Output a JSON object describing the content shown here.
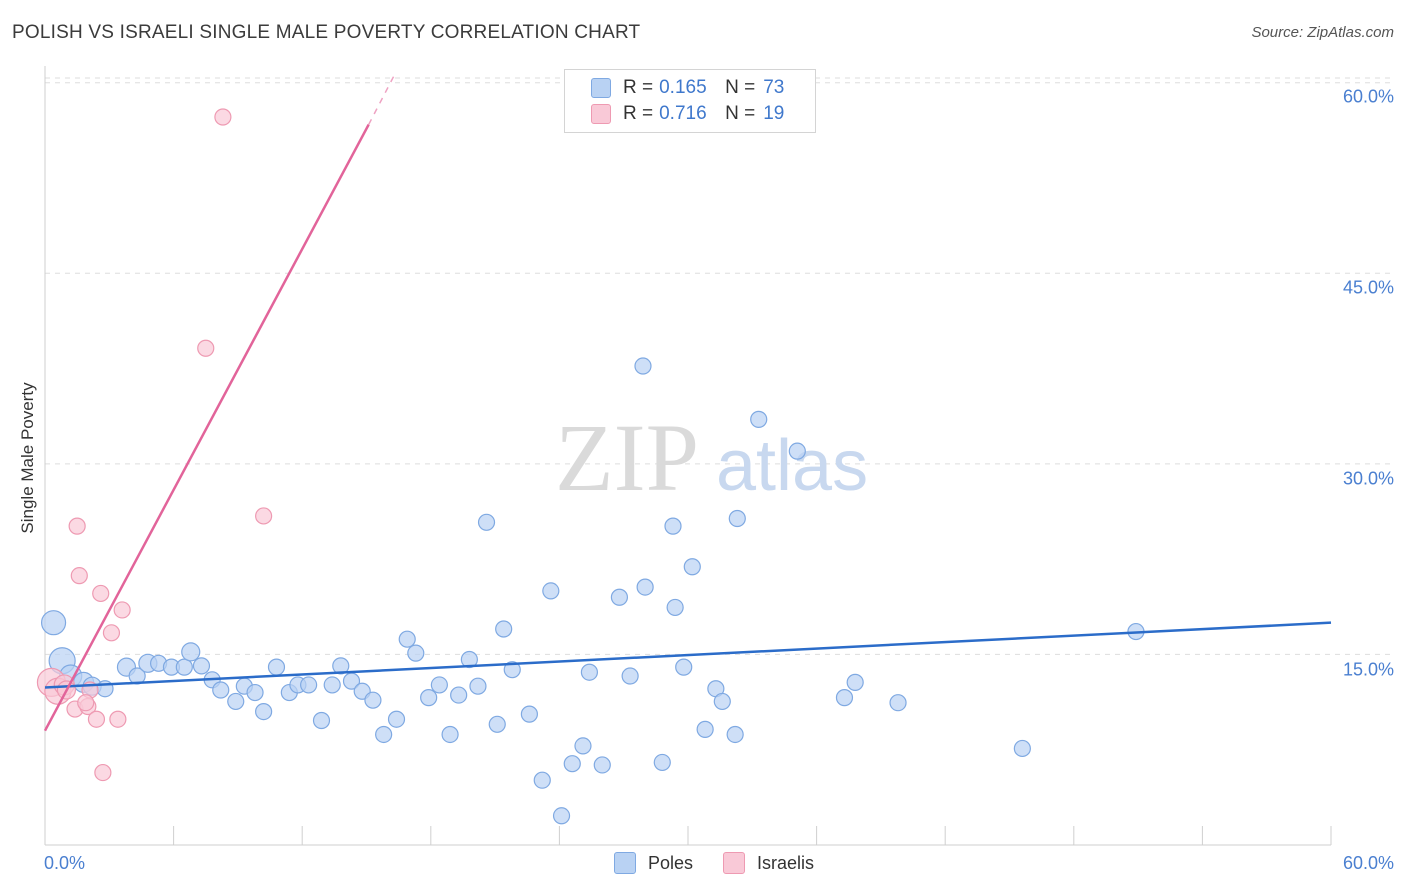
{
  "header": {
    "title": "POLISH VS ISRAELI SINGLE MALE POVERTY CORRELATION CHART",
    "source": "Source: ZipAtlas.com"
  },
  "legend": {
    "r_label": "R =",
    "n_label": "N =",
    "rows": [
      {
        "name": "Poles",
        "r": "0.165",
        "n": "73"
      },
      {
        "name": "Israelis",
        "r": "0.716",
        "n": "19"
      }
    ]
  },
  "colors": {
    "blue_fill": "#b9d2f3",
    "blue_stroke": "#7fa9e2",
    "blue_line": "#2b6cc9",
    "pink_fill": "#f9c9d7",
    "pink_stroke": "#ee9ab2",
    "pink_line": "#e2649a",
    "tick_text": "#4a7fd0"
  },
  "chart_data": {
    "type": "scatter",
    "title": "POLISH VS ISRAELI SINGLE MALE POVERTY CORRELATION CHART",
    "xlabel": "",
    "ylabel": "Single Male Poverty",
    "xlim": [
      0,
      60
    ],
    "ylim": [
      0,
      61
    ],
    "x_tick_labels": [
      "0.0%",
      "60.0%"
    ],
    "y_ticks": [
      15,
      30,
      45,
      60
    ],
    "y_tick_labels": [
      "15.0%",
      "30.0%",
      "45.0%",
      "60.0%"
    ],
    "grid": true,
    "legend_position": "top-center",
    "watermark": "ZIPatlas",
    "series": [
      {
        "name": "Poles",
        "r": 0.165,
        "n": 73,
        "trend": {
          "x0": 0,
          "y0": 12.4,
          "x1": 60,
          "y1": 17.5
        },
        "points": [
          [
            0.4,
            17.5,
            12
          ],
          [
            0.8,
            14.5,
            13
          ],
          [
            1.2,
            13.3,
            11
          ],
          [
            1.8,
            12.8,
            10
          ],
          [
            2.2,
            12.5,
            9
          ],
          [
            2.8,
            12.3,
            8
          ],
          [
            3.8,
            14.0,
            9
          ],
          [
            4.3,
            13.3,
            8
          ],
          [
            4.8,
            14.3,
            9
          ],
          [
            5.3,
            14.3,
            8
          ],
          [
            5.9,
            14.0,
            8
          ],
          [
            6.5,
            14.0,
            8
          ],
          [
            6.8,
            15.2,
            9
          ],
          [
            7.3,
            14.1,
            8
          ],
          [
            7.8,
            13.0,
            8
          ],
          [
            8.2,
            12.2,
            8
          ],
          [
            8.9,
            11.3,
            8
          ],
          [
            9.3,
            12.5,
            8
          ],
          [
            9.8,
            12.0,
            8
          ],
          [
            10.2,
            10.5,
            8
          ],
          [
            10.8,
            14.0,
            8
          ],
          [
            11.4,
            12.0,
            8
          ],
          [
            11.8,
            12.6,
            8
          ],
          [
            12.3,
            12.6,
            8
          ],
          [
            12.9,
            9.8,
            8
          ],
          [
            13.4,
            12.6,
            8
          ],
          [
            13.8,
            14.1,
            8
          ],
          [
            14.3,
            12.9,
            8
          ],
          [
            14.8,
            12.1,
            8
          ],
          [
            15.3,
            11.4,
            8
          ],
          [
            15.8,
            8.7,
            8
          ],
          [
            16.4,
            9.9,
            8
          ],
          [
            16.9,
            16.2,
            8
          ],
          [
            17.3,
            15.1,
            8
          ],
          [
            17.9,
            11.6,
            8
          ],
          [
            18.4,
            12.6,
            8
          ],
          [
            18.9,
            8.7,
            8
          ],
          [
            19.3,
            11.8,
            8
          ],
          [
            19.8,
            14.6,
            8
          ],
          [
            20.2,
            12.5,
            8
          ],
          [
            20.6,
            25.4,
            8
          ],
          [
            21.1,
            9.5,
            8
          ],
          [
            21.4,
            17.0,
            8
          ],
          [
            21.8,
            13.8,
            8
          ],
          [
            22.6,
            10.3,
            8
          ],
          [
            23.2,
            5.1,
            8
          ],
          [
            23.6,
            20.0,
            8
          ],
          [
            24.1,
            2.3,
            8
          ],
          [
            24.6,
            6.4,
            8
          ],
          [
            25.1,
            7.8,
            8
          ],
          [
            25.4,
            13.6,
            8
          ],
          [
            26.0,
            6.3,
            8
          ],
          [
            26.8,
            19.5,
            8
          ],
          [
            27.3,
            13.3,
            8
          ],
          [
            28.0,
            20.3,
            8
          ],
          [
            28.8,
            6.5,
            8
          ],
          [
            29.3,
            25.1,
            8
          ],
          [
            29.4,
            18.7,
            8
          ],
          [
            30.2,
            21.9,
            8
          ],
          [
            30.8,
            9.1,
            8
          ],
          [
            31.3,
            12.3,
            8
          ],
          [
            31.6,
            11.3,
            8
          ],
          [
            32.3,
            25.7,
            8
          ],
          [
            32.2,
            8.7,
            8
          ],
          [
            33.3,
            33.5,
            8
          ],
          [
            35.1,
            31.0,
            8
          ],
          [
            37.3,
            11.6,
            8
          ],
          [
            37.8,
            12.8,
            8
          ],
          [
            39.8,
            11.2,
            8
          ],
          [
            45.6,
            7.6,
            8
          ],
          [
            50.9,
            16.8,
            8
          ],
          [
            27.9,
            37.7,
            8
          ],
          [
            29.8,
            14.0,
            8
          ]
        ]
      },
      {
        "name": "Israelis",
        "r": 0.716,
        "n": 19,
        "trend": {
          "x0": 0,
          "y0": 9.0,
          "x1": 15.1,
          "y1": 56.7,
          "dash_to": [
            16.3,
            60.6
          ]
        },
        "points": [
          [
            0.3,
            12.8,
            14
          ],
          [
            0.6,
            12.1,
            13
          ],
          [
            0.9,
            12.6,
            10
          ],
          [
            1.0,
            12.2,
            9
          ],
          [
            1.5,
            25.1,
            8
          ],
          [
            1.6,
            21.2,
            8
          ],
          [
            1.4,
            10.7,
            8
          ],
          [
            2.0,
            10.9,
            8
          ],
          [
            2.1,
            12.2,
            8
          ],
          [
            2.4,
            9.9,
            8
          ],
          [
            2.6,
            19.8,
            8
          ],
          [
            2.7,
            5.7,
            8
          ],
          [
            3.1,
            16.7,
            8
          ],
          [
            3.4,
            9.9,
            8
          ],
          [
            3.6,
            18.5,
            8
          ],
          [
            7.5,
            39.1,
            8
          ],
          [
            8.3,
            57.3,
            8
          ],
          [
            10.2,
            25.9,
            8
          ],
          [
            1.9,
            11.2,
            8
          ]
        ]
      }
    ]
  }
}
